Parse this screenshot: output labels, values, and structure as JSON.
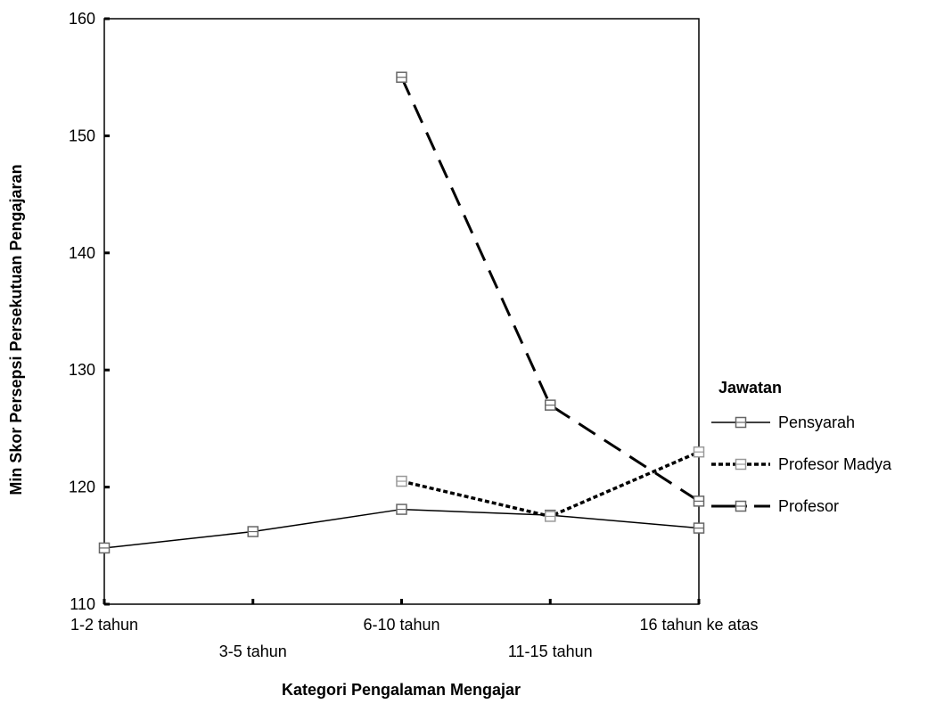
{
  "chart_data": {
    "type": "line",
    "title": "",
    "xlabel": "Kategori Pengalaman Mengajar",
    "ylabel": "Min Skor Persepsi Persekutuan Pengajaran",
    "categories": [
      "1-2 tahun",
      "3-5 tahun",
      "6-10 tahun",
      "11-15 tahun",
      "16 tahun ke atas"
    ],
    "ylim": [
      110,
      160
    ],
    "yticks": [
      110,
      120,
      130,
      140,
      150,
      160
    ],
    "grid": false,
    "legend": {
      "title": "Jawatan",
      "placement": "right"
    },
    "series": [
      {
        "name": "Pensyarah",
        "values": [
          114.8,
          116.2,
          118.1,
          117.6,
          116.5
        ],
        "color": "#000000",
        "dash": "solid",
        "marker_color": "#666666"
      },
      {
        "name": "Profesor Madya",
        "values": [
          null,
          null,
          120.5,
          117.5,
          123.0
        ],
        "color": "#000000",
        "dash": "dotted",
        "marker_color": "#999999"
      },
      {
        "name": "Profesor",
        "values": [
          null,
          null,
          155.0,
          127.0,
          118.8
        ],
        "color": "#000000",
        "dash": "dashed",
        "marker_color": "#666666"
      }
    ]
  }
}
